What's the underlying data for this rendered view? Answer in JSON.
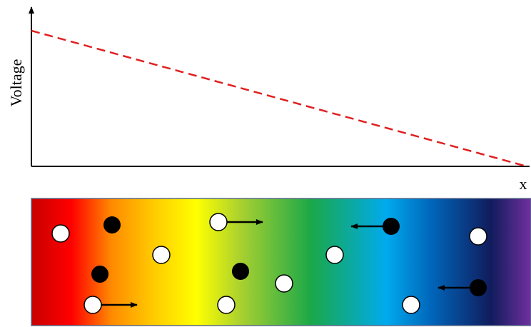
{
  "axes": {
    "y_label": "Voltage",
    "x_label": "x"
  }
}
